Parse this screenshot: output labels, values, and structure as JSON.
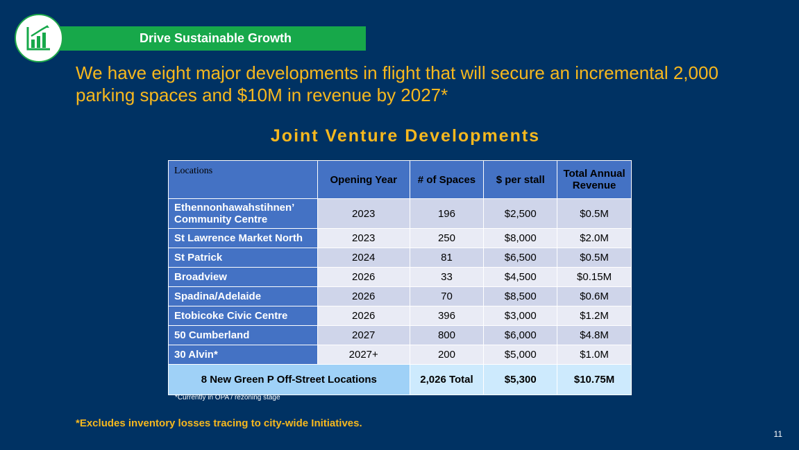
{
  "banner": {
    "label": "Drive Sustainable Growth"
  },
  "icon": {
    "name": "growth-chart-icon",
    "color": "#17a84a"
  },
  "headline": "We have eight major developments in flight that will secure an incremental 2,000 parking spaces and $10M in revenue by 2027*",
  "table_title": "Joint Venture Developments",
  "table": {
    "headers": [
      "Locations",
      "Opening Year",
      "# of Spaces",
      "$ per stall",
      "Total Annual Revenue"
    ],
    "rows": [
      [
        "Ethennonhawahstihnen’ Community Centre",
        "2023",
        "196",
        "$2,500",
        "$0.5M"
      ],
      [
        "St Lawrence Market North",
        "2023",
        "250",
        "$8,000",
        "$2.0M"
      ],
      [
        "St Patrick",
        "2024",
        "81",
        "$6,500",
        "$0.5M"
      ],
      [
        "Broadview",
        "2026",
        "33",
        "$4,500",
        "$0.15M"
      ],
      [
        "Spadina/Adelaide",
        "2026",
        "70",
        "$8,500",
        "$0.6M"
      ],
      [
        "Etobicoke Civic Centre",
        "2026",
        "396",
        "$3,000",
        "$1.2M"
      ],
      [
        "50 Cumberland",
        "2027",
        "800",
        "$6,000",
        "$4.8M"
      ],
      [
        "30 Alvin*",
        "2027+",
        "200",
        "$5,000",
        "$1.0M"
      ]
    ],
    "total": {
      "label": "8 New Green P Off-Street Locations",
      "spaces": "2,026 Total",
      "per_stall": "$5,300",
      "revenue": "$10.75M"
    }
  },
  "footnote": "*Currently in OPA / rezoning stage",
  "exclusion_note": "*Excludes inventory losses tracing to city-wide Initiatives.",
  "page_number": "11",
  "colors": {
    "background": "#003263",
    "banner": "#17a84a",
    "accent_text": "#f7b81e",
    "table_header": "#4472c4",
    "row_dark": "#cfd5ea",
    "row_light": "#e9ebf5",
    "total_row": "#cdeafd",
    "total_label": "#9fd1f7"
  }
}
